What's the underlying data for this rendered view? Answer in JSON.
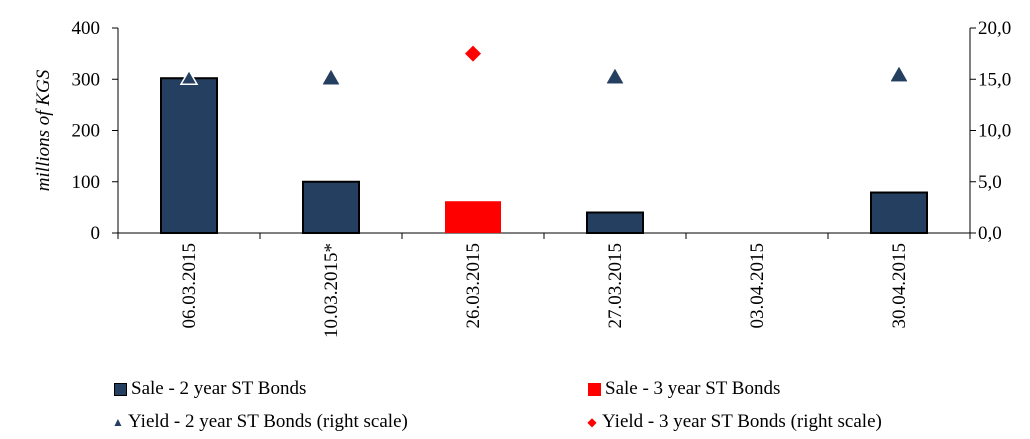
{
  "chart_data": {
    "type": "bar",
    "categories": [
      "06.03.2015",
      "10.03.2015*",
      "26.03.2015",
      "27.03.2015",
      "03.04.2015",
      "30.04.2015"
    ],
    "ylabel": "millions of KGS",
    "ylim": [
      0,
      400
    ],
    "y_ticks": [
      "0",
      "100",
      "200",
      "300",
      "400"
    ],
    "y2lim": [
      0,
      20
    ],
    "y2_ticks": [
      "0,0",
      "5,0",
      "10,0",
      "15,0",
      "20,0"
    ],
    "grid": false,
    "legend_position": "bottom",
    "series": [
      {
        "name": "Sale - 2 year ST Bonds",
        "kind": "bar",
        "axis": "left",
        "color": "#243f60",
        "values": [
          302,
          100,
          null,
          40,
          null,
          79
        ]
      },
      {
        "name": "Sale - 3 year ST Bonds",
        "kind": "bar",
        "axis": "left",
        "color": "#ff0000",
        "values": [
          null,
          null,
          62,
          null,
          null,
          null
        ]
      },
      {
        "name": "Yield - 2 year ST Bonds (right scale)",
        "kind": "marker",
        "marker": "triangle",
        "axis": "right",
        "color": "#243f60",
        "values": [
          15.1,
          15.1,
          null,
          15.2,
          null,
          15.4
        ]
      },
      {
        "name": "Yield - 3 year ST Bonds (right scale)",
        "kind": "marker",
        "marker": "diamond",
        "axis": "right",
        "color": "#ff0000",
        "values": [
          null,
          null,
          17.5,
          null,
          null,
          null
        ]
      }
    ]
  },
  "legend": {
    "items": [
      {
        "label": "Sale - 2 year ST Bonds",
        "symbol": "square",
        "color": "#243f60"
      },
      {
        "label": "Sale - 3 year ST Bonds",
        "symbol": "square",
        "color": "#ff0000"
      },
      {
        "label": "Yield - 2 year ST Bonds (right scale)",
        "symbol": "▲",
        "color": "#243f60"
      },
      {
        "label": "Yield - 3 year ST Bonds (right scale)",
        "symbol": "◆",
        "color": "#ff0000"
      }
    ]
  }
}
